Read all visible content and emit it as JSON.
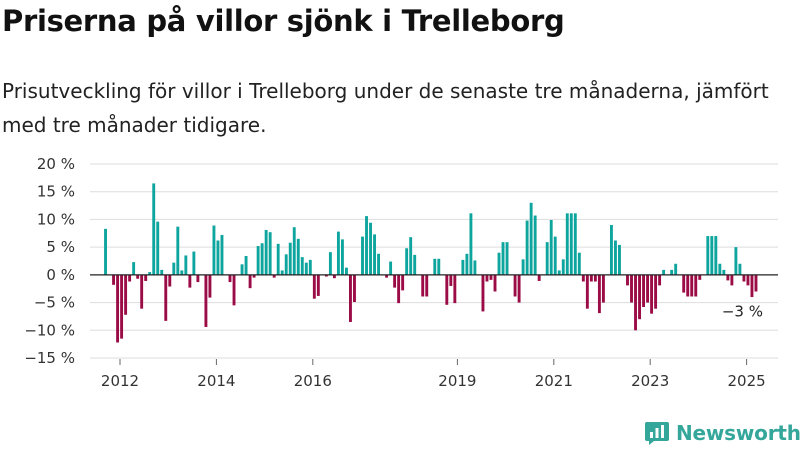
{
  "header": {
    "title": "Priserna på villor sjönk i Trelleborg",
    "subtitle": "Prisutveckling för villor i Trelleborg under de senaste tre månaderna, jämfört med tre månader tidigare."
  },
  "brand": {
    "name": "Newsworthy",
    "icon": "newsworthy-logo-icon",
    "color": "#34a69a"
  },
  "colors": {
    "positive": "#0ea59e",
    "negative": "#9b0b45",
    "grid": "#dddddd",
    "zero": "#222222"
  },
  "chart_data": {
    "type": "bar",
    "title": "Priserna på villor sjönk i Trelleborg",
    "ylim": [
      -15,
      20
    ],
    "y_ticks": [
      20,
      15,
      10,
      5,
      0,
      -5,
      -10,
      -15
    ],
    "y_tick_labels": [
      "20 %",
      "15 %",
      "10 %",
      "5 %",
      "0 %",
      "−5 %",
      "−10 %",
      "−15 %"
    ],
    "x_ticks": [
      2012,
      2014,
      2016,
      2019,
      2021,
      2023,
      2025
    ],
    "x_start": 2011.7,
    "step": 0.0833,
    "values": [
      8.3,
      0,
      -1.8,
      -12.2,
      -11.5,
      -7.2,
      -1.2,
      2.3,
      -0.7,
      -6.1,
      -1.1,
      0.5,
      16.5,
      9.6,
      0.9,
      -8.3,
      -2.1,
      2.2,
      8.7,
      0.8,
      3.5,
      -2.3,
      4.2,
      -1.3,
      0,
      -9.4,
      -4.1,
      8.9,
      6.2,
      7.2,
      0,
      -1.3,
      -5.5,
      0,
      1.9,
      3.4,
      -2.4,
      -0.5,
      5.2,
      5.7,
      8.1,
      7.7,
      -0.5,
      5.6,
      0.8,
      3.7,
      5.8,
      8.6,
      6.5,
      3.2,
      2.2,
      2.7,
      -4.3,
      -3.8,
      0,
      -0.3,
      4.1,
      -0.6,
      7.8,
      6.4,
      1.3,
      -8.5,
      -4.9,
      0,
      6.9,
      10.6,
      9.4,
      7.3,
      3.8,
      0,
      -0.5,
      2.4,
      -2.3,
      -5.1,
      -2.8,
      4.8,
      6.8,
      3.6,
      0,
      -3.9,
      -3.9,
      0,
      2.9,
      2.9,
      0,
      -5.4,
      -2.0,
      -5.1,
      0,
      2.7,
      3.8,
      11.1,
      2.6,
      0,
      -6.6,
      -1.2,
      -0.9,
      -3.0,
      4.0,
      5.9,
      5.9,
      0,
      -3.9,
      -5.0,
      2.8,
      9.8,
      13.0,
      10.7,
      -1.1,
      0,
      5.9,
      9.9,
      6.9,
      0.8,
      2.8,
      11.1,
      11.1,
      11.1,
      4.0,
      -1.2,
      -6.1,
      -1.2,
      -1.2,
      -6.9,
      -5.0,
      0,
      9.0,
      6.2,
      5.4,
      0,
      -1.9,
      -5.0,
      -10.0,
      -8.0,
      -5.8,
      -5.0,
      -7.0,
      -6.1,
      -1.9,
      0.9,
      0,
      0.9,
      2.0,
      0,
      -3.2,
      -3.9,
      -3.9,
      -3.9,
      -0.9,
      0,
      7.0,
      7.0,
      7.0,
      2.0,
      0.9,
      -1.0,
      -1.9,
      5.0,
      2.0,
      -1.2,
      -1.9,
      -4.0,
      -3.0
    ],
    "annotation": {
      "label": "−3 %"
    }
  }
}
